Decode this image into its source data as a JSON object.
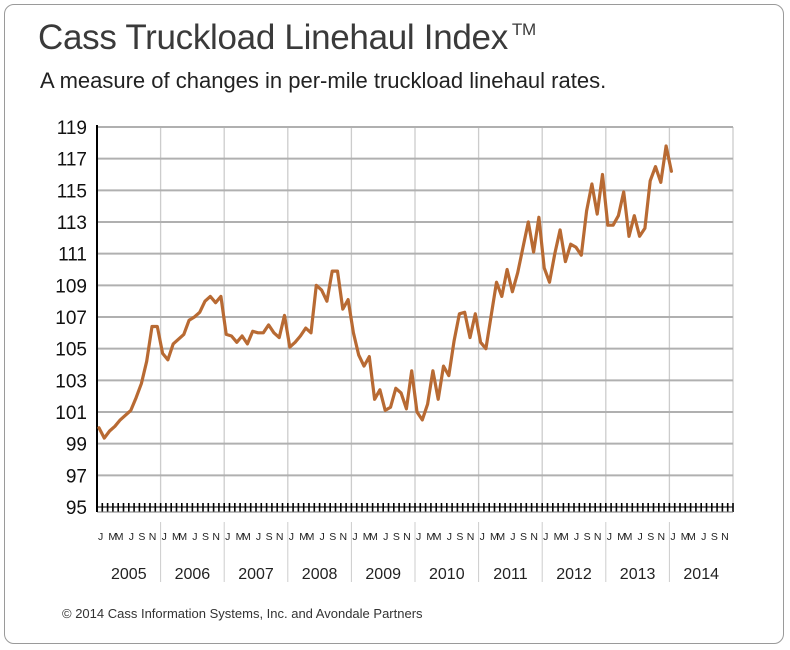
{
  "title": "Cass Truckload Linehaul Index",
  "trademark": "TM",
  "subtitle": "A measure of changes in per-mile truckload linehaul rates.",
  "copyright": "© 2014 Cass Information Systems, Inc. and Avondale Partners",
  "colors": {
    "line": "#b86a33",
    "grid": "#b0b0b0",
    "year_divider": "#cccccc",
    "axis": "#000000"
  },
  "chart_data": {
    "type": "line",
    "title": "Cass Truckload Linehaul Index",
    "xlabel": "",
    "ylabel": "",
    "ylim": [
      95,
      119
    ],
    "yticks": [
      95,
      97,
      99,
      101,
      103,
      105,
      107,
      109,
      111,
      113,
      115,
      117,
      119
    ],
    "grid": true,
    "month_labels": [
      "J",
      "M",
      "M",
      "J",
      "S",
      "N"
    ],
    "years": [
      "2005",
      "2006",
      "2007",
      "2008",
      "2009",
      "2010",
      "2011",
      "2012",
      "2013",
      "2014"
    ],
    "series": [
      {
        "start": "2005-01",
        "frequency": "monthly",
        "values": [
          100.0,
          99.35,
          99.8,
          100.1,
          100.5,
          100.8,
          101.1,
          101.9,
          102.8,
          104.2,
          106.4,
          106.4,
          104.7,
          104.3,
          105.3,
          105.6,
          105.9,
          106.8,
          107.0,
          107.3,
          108.0,
          108.3,
          107.9,
          108.3,
          105.9,
          105.8,
          105.4,
          105.8,
          105.3,
          106.1,
          106.0,
          106.0,
          106.5,
          106.0,
          105.7,
          107.1,
          105.1,
          105.4,
          105.8,
          106.3,
          106.0,
          109.0,
          108.7,
          108.0,
          109.9,
          109.9,
          107.5,
          108.1,
          106.0,
          104.6,
          103.9,
          104.5,
          101.8,
          102.4,
          101.1,
          101.3,
          102.5,
          102.2,
          101.2,
          103.6,
          101.0,
          100.5,
          101.5,
          103.6,
          101.8,
          103.9,
          103.3,
          105.5,
          107.2,
          107.3,
          105.7,
          107.2,
          105.4,
          105.0,
          107.1,
          109.2,
          108.3,
          110.0,
          108.6,
          109.8,
          111.4,
          113.0,
          111.1,
          113.3,
          110.1,
          109.2,
          111.0,
          112.5,
          110.5,
          111.6,
          111.4,
          110.9,
          113.7,
          115.4,
          113.5,
          116.0,
          112.8,
          112.8,
          113.4,
          114.9,
          112.1,
          113.4,
          112.1,
          112.6,
          115.6,
          116.5,
          115.5,
          117.8,
          116.2
        ]
      }
    ]
  }
}
